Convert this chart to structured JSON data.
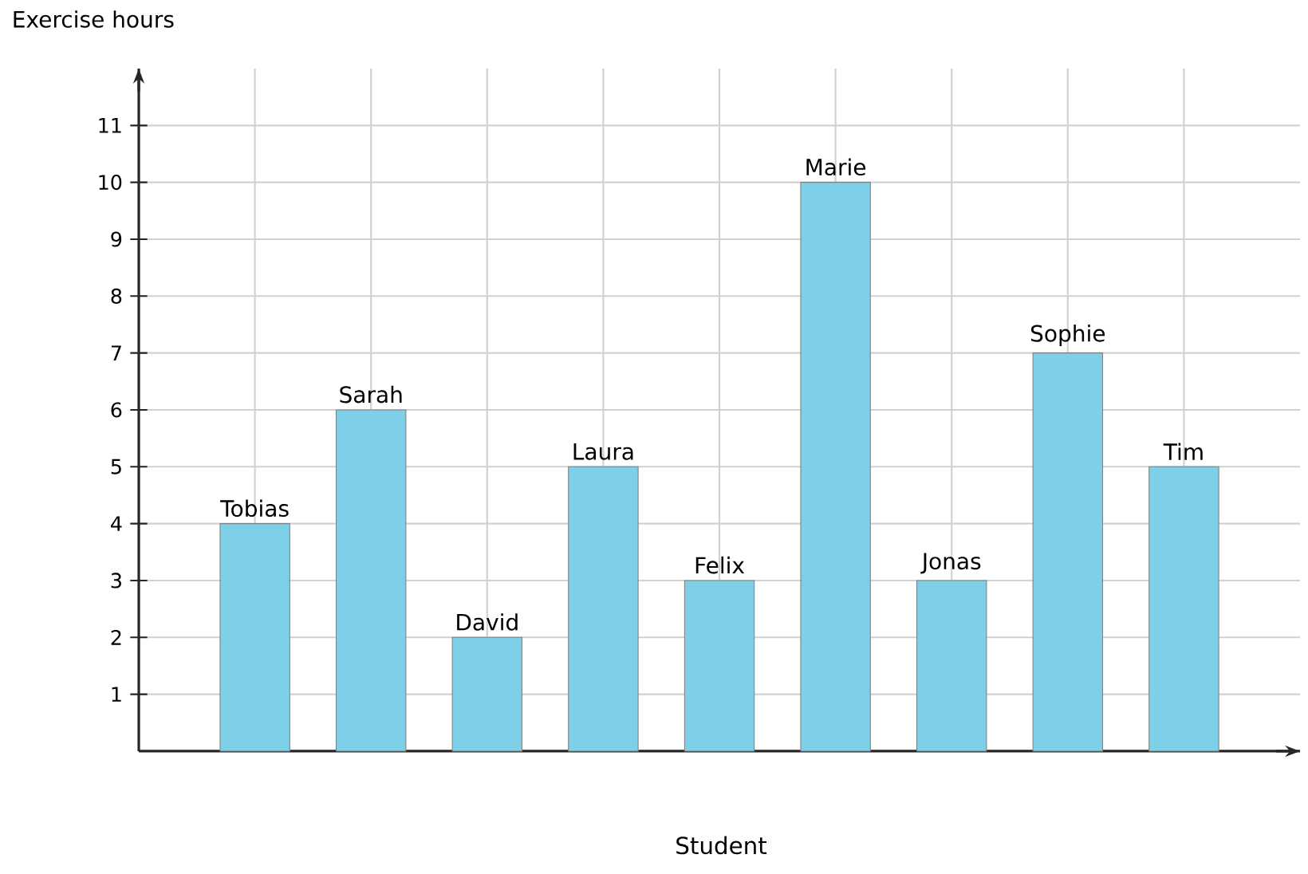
{
  "chart_data": {
    "type": "bar",
    "xlabel": "Student",
    "ylabel": "Exercise hours",
    "categories": [
      "Tobias",
      "Sarah",
      "David",
      "Laura",
      "Felix",
      "Marie",
      "Jonas",
      "Sophie",
      "Tim"
    ],
    "values": [
      4,
      6,
      2,
      5,
      3,
      10,
      3,
      7,
      5
    ],
    "color": "#7ecfe8",
    "ylim": [
      0,
      12
    ],
    "yticks": [
      1,
      2,
      3,
      4,
      5,
      6,
      7,
      8,
      9,
      10,
      11
    ],
    "grid": true
  }
}
